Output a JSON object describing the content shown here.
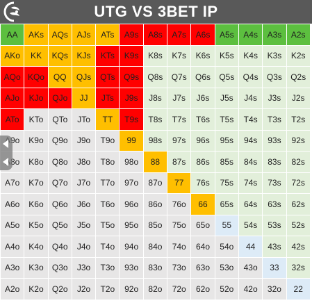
{
  "header": {
    "title": "UTG VS 3BET IP"
  },
  "colors": {
    "g": "#5cbf3f",
    "o": "#ffbf00",
    "r": "#ff0000",
    "lg": "#e2efda",
    "gr": "#e7e6e6",
    "bl": "#ddebf7"
  },
  "grid": [
    [
      [
        "AA",
        "g"
      ],
      [
        "AKs",
        "o"
      ],
      [
        "AQs",
        "o"
      ],
      [
        "AJs",
        "o"
      ],
      [
        "ATs",
        "o"
      ],
      [
        "A9s",
        "r"
      ],
      [
        "A8s",
        "r"
      ],
      [
        "A7s",
        "r"
      ],
      [
        "A6s",
        "r"
      ],
      [
        "A5s",
        "g"
      ],
      [
        "A4s",
        "g"
      ],
      [
        "A3s",
        "g"
      ],
      [
        "A2s",
        "g"
      ]
    ],
    [
      [
        "AKo",
        "o"
      ],
      [
        "KK",
        "o"
      ],
      [
        "KQs",
        "o"
      ],
      [
        "KJs",
        "o"
      ],
      [
        "KTs",
        "r"
      ],
      [
        "K9s",
        "r"
      ],
      [
        "K8s",
        "lg"
      ],
      [
        "K7s",
        "lg"
      ],
      [
        "K6s",
        "lg"
      ],
      [
        "K5s",
        "lg"
      ],
      [
        "K4s",
        "lg"
      ],
      [
        "K3s",
        "lg"
      ],
      [
        "K2s",
        "lg"
      ]
    ],
    [
      [
        "AQo",
        "r"
      ],
      [
        "KQo",
        "r"
      ],
      [
        "QQ",
        "o"
      ],
      [
        "QJs",
        "o"
      ],
      [
        "QTs",
        "r"
      ],
      [
        "Q9s",
        "r"
      ],
      [
        "Q8s",
        "lg"
      ],
      [
        "Q7s",
        "lg"
      ],
      [
        "Q6s",
        "lg"
      ],
      [
        "Q5s",
        "lg"
      ],
      [
        "Q4s",
        "lg"
      ],
      [
        "Q3s",
        "lg"
      ],
      [
        "Q2s",
        "lg"
      ]
    ],
    [
      [
        "AJo",
        "r"
      ],
      [
        "KJo",
        "r"
      ],
      [
        "QJo",
        "r"
      ],
      [
        "JJ",
        "o"
      ],
      [
        "JTs",
        "r"
      ],
      [
        "J9s",
        "r"
      ],
      [
        "J8s",
        "lg"
      ],
      [
        "J7s",
        "lg"
      ],
      [
        "J6s",
        "lg"
      ],
      [
        "J5s",
        "lg"
      ],
      [
        "J4s",
        "lg"
      ],
      [
        "J3s",
        "lg"
      ],
      [
        "J2s",
        "lg"
      ]
    ],
    [
      [
        "ATo",
        "r"
      ],
      [
        "KTo",
        "gr"
      ],
      [
        "QTo",
        "gr"
      ],
      [
        "JTo",
        "gr"
      ],
      [
        "TT",
        "o"
      ],
      [
        "T9s",
        "r"
      ],
      [
        "T8s",
        "lg"
      ],
      [
        "T7s",
        "lg"
      ],
      [
        "T6s",
        "lg"
      ],
      [
        "T5s",
        "lg"
      ],
      [
        "T4s",
        "lg"
      ],
      [
        "T3s",
        "lg"
      ],
      [
        "T2s",
        "lg"
      ]
    ],
    [
      [
        "A9o",
        "gr"
      ],
      [
        "K9o",
        "gr"
      ],
      [
        "Q9o",
        "gr"
      ],
      [
        "J9o",
        "gr"
      ],
      [
        "T9o",
        "gr"
      ],
      [
        "99",
        "o"
      ],
      [
        "98s",
        "lg"
      ],
      [
        "97s",
        "lg"
      ],
      [
        "96s",
        "lg"
      ],
      [
        "95s",
        "lg"
      ],
      [
        "94s",
        "lg"
      ],
      [
        "93s",
        "lg"
      ],
      [
        "92s",
        "lg"
      ]
    ],
    [
      [
        "A8o",
        "gr"
      ],
      [
        "K8o",
        "gr"
      ],
      [
        "Q8o",
        "gr"
      ],
      [
        "J8o",
        "gr"
      ],
      [
        "T8o",
        "gr"
      ],
      [
        "98o",
        "gr"
      ],
      [
        "88",
        "o"
      ],
      [
        "87s",
        "lg"
      ],
      [
        "86s",
        "lg"
      ],
      [
        "85s",
        "lg"
      ],
      [
        "84s",
        "lg"
      ],
      [
        "83s",
        "lg"
      ],
      [
        "82s",
        "lg"
      ]
    ],
    [
      [
        "A7o",
        "gr"
      ],
      [
        "K7o",
        "gr"
      ],
      [
        "Q7o",
        "gr"
      ],
      [
        "J7o",
        "gr"
      ],
      [
        "T7o",
        "gr"
      ],
      [
        "97o",
        "gr"
      ],
      [
        "87o",
        "gr"
      ],
      [
        "77",
        "o"
      ],
      [
        "76s",
        "lg"
      ],
      [
        "75s",
        "lg"
      ],
      [
        "74s",
        "lg"
      ],
      [
        "73s",
        "lg"
      ],
      [
        "72s",
        "lg"
      ]
    ],
    [
      [
        "A6o",
        "gr"
      ],
      [
        "K6o",
        "gr"
      ],
      [
        "Q6o",
        "gr"
      ],
      [
        "J6o",
        "gr"
      ],
      [
        "T6o",
        "gr"
      ],
      [
        "96o",
        "gr"
      ],
      [
        "86o",
        "gr"
      ],
      [
        "76o",
        "gr"
      ],
      [
        "66",
        "o"
      ],
      [
        "65s",
        "lg"
      ],
      [
        "64s",
        "lg"
      ],
      [
        "63s",
        "lg"
      ],
      [
        "62s",
        "lg"
      ]
    ],
    [
      [
        "A5o",
        "gr"
      ],
      [
        "K5o",
        "gr"
      ],
      [
        "Q5o",
        "gr"
      ],
      [
        "J5o",
        "gr"
      ],
      [
        "T5o",
        "gr"
      ],
      [
        "95o",
        "gr"
      ],
      [
        "85o",
        "gr"
      ],
      [
        "75o",
        "gr"
      ],
      [
        "65o",
        "gr"
      ],
      [
        "55",
        "bl"
      ],
      [
        "54s",
        "lg"
      ],
      [
        "53s",
        "lg"
      ],
      [
        "52s",
        "lg"
      ]
    ],
    [
      [
        "A4o",
        "gr"
      ],
      [
        "K4o",
        "gr"
      ],
      [
        "Q4o",
        "gr"
      ],
      [
        "J4o",
        "gr"
      ],
      [
        "T4o",
        "gr"
      ],
      [
        "94o",
        "gr"
      ],
      [
        "84o",
        "gr"
      ],
      [
        "74o",
        "gr"
      ],
      [
        "64o",
        "gr"
      ],
      [
        "54o",
        "gr"
      ],
      [
        "44",
        "bl"
      ],
      [
        "43s",
        "lg"
      ],
      [
        "42s",
        "lg"
      ]
    ],
    [
      [
        "A3o",
        "gr"
      ],
      [
        "K3o",
        "gr"
      ],
      [
        "Q3o",
        "gr"
      ],
      [
        "J3o",
        "gr"
      ],
      [
        "T3o",
        "gr"
      ],
      [
        "93o",
        "gr"
      ],
      [
        "83o",
        "gr"
      ],
      [
        "73o",
        "gr"
      ],
      [
        "63o",
        "gr"
      ],
      [
        "53o",
        "gr"
      ],
      [
        "43o",
        "gr"
      ],
      [
        "33",
        "bl"
      ],
      [
        "32s",
        "lg"
      ]
    ],
    [
      [
        "A2o",
        "gr"
      ],
      [
        "K2o",
        "gr"
      ],
      [
        "Q2o",
        "gr"
      ],
      [
        "J2o",
        "gr"
      ],
      [
        "T2o",
        "gr"
      ],
      [
        "92o",
        "gr"
      ],
      [
        "82o",
        "gr"
      ],
      [
        "72o",
        "gr"
      ],
      [
        "62o",
        "gr"
      ],
      [
        "52o",
        "gr"
      ],
      [
        "42o",
        "gr"
      ],
      [
        "32o",
        "gr"
      ],
      [
        "22",
        "bl"
      ]
    ]
  ]
}
